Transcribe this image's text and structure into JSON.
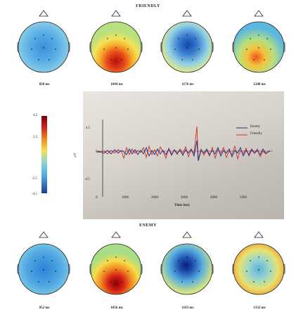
{
  "titles": {
    "friendly": "FRIENDLY",
    "enemy": "ENEMY"
  },
  "top_times": [
    "820 ms",
    "1044 ms",
    "1176 ms",
    "1248 ms"
  ],
  "bottom_times": [
    "852 ms",
    "1056 ms",
    "1163 ms",
    "1332 ms"
  ],
  "colorbar": {
    "ticks": [
      "4.5",
      "2.5",
      "-2.5",
      "-4.5"
    ]
  },
  "chart": {
    "y_ticks": [
      "4.5",
      "0",
      "-4.5"
    ],
    "y_label": "µV",
    "x_ticks": [
      "0",
      "1000",
      "2000",
      "3000",
      "4000",
      "5000"
    ],
    "x_label": "Time (ms)",
    "legend": [
      {
        "label": "Enemy",
        "color": "#1f2a8a"
      },
      {
        "label": "Friendly",
        "color": "#d03020"
      }
    ]
  }
}
